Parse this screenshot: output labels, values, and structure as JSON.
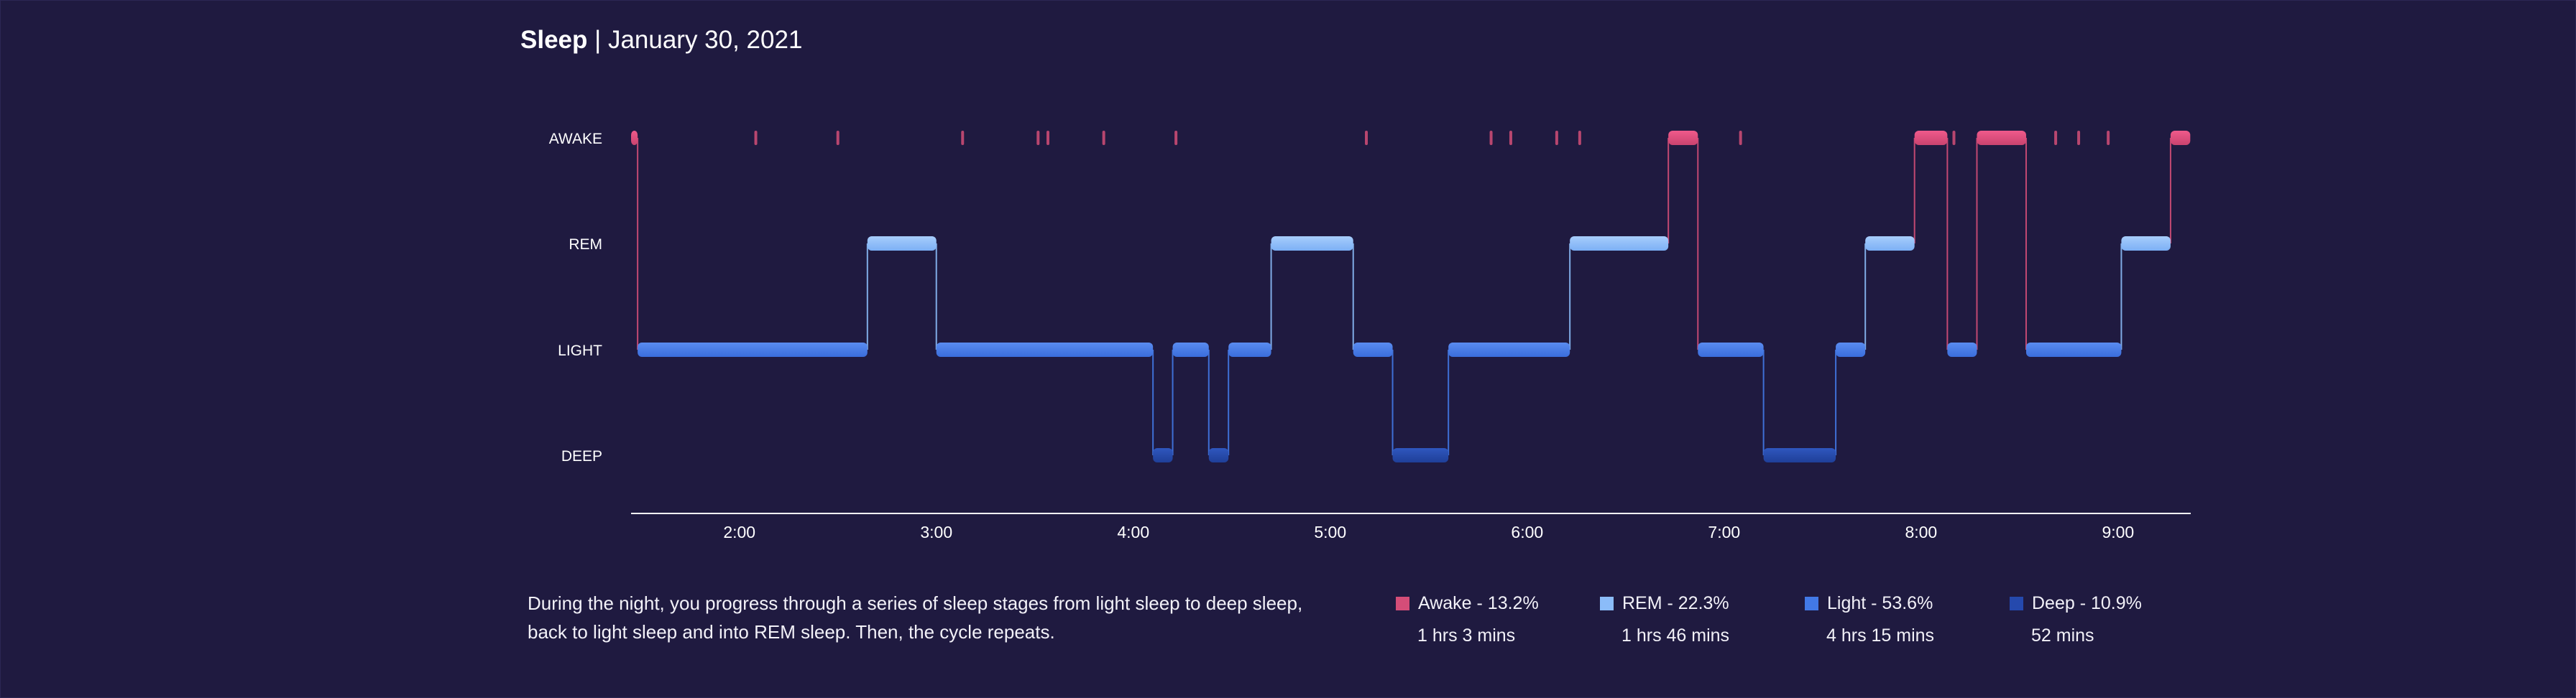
{
  "header": {
    "title": "Sleep",
    "date": "January 30, 2021"
  },
  "description": "During the night, you progress through a series of sleep stages from light sleep to deep sleep, back to light sleep and into REM sleep. Then, the cycle repeats.",
  "legend": [
    {
      "label": "Awake - 13.2%",
      "duration": "1 hrs 3 mins",
      "color": "#d44d78"
    },
    {
      "label": "REM - 22.3%",
      "duration": "1 hrs 46 mins",
      "color": "#8bbcf9"
    },
    {
      "label": "Light - 53.6%",
      "duration": "4 hrs 15 mins",
      "color": "#4279e6"
    },
    {
      "label": "Deep - 10.9%",
      "duration": "52 mins",
      "color": "#2549ad"
    }
  ],
  "chart_data": {
    "type": "line",
    "title": "Sleep | January 30, 2021",
    "x_axis": {
      "type": "time",
      "range": [
        "1:27",
        "9:27"
      ],
      "ticks": [
        "2:00",
        "3:00",
        "4:00",
        "5:00",
        "6:00",
        "7:00",
        "8:00",
        "9:00"
      ]
    },
    "y_categories": [
      "AWAKE",
      "REM",
      "LIGHT",
      "DEEP"
    ],
    "colors": {
      "AWAKE": "#d44d78",
      "REM": "#8bbcf9",
      "LIGHT": "#4279e6",
      "DEEP": "#2549ad"
    },
    "segments": [
      {
        "stage": "AWAKE",
        "start": "1:27",
        "end": "1:29"
      },
      {
        "stage": "LIGHT",
        "start": "1:29",
        "end": "2:39"
      },
      {
        "stage": "REM",
        "start": "2:39",
        "end": "3:00"
      },
      {
        "stage": "LIGHT",
        "start": "3:00",
        "end": "4:06"
      },
      {
        "stage": "DEEP",
        "start": "4:06",
        "end": "4:12"
      },
      {
        "stage": "LIGHT",
        "start": "4:12",
        "end": "4:23"
      },
      {
        "stage": "DEEP",
        "start": "4:23",
        "end": "4:29"
      },
      {
        "stage": "LIGHT",
        "start": "4:29",
        "end": "4:42"
      },
      {
        "stage": "REM",
        "start": "4:42",
        "end": "5:07"
      },
      {
        "stage": "LIGHT",
        "start": "5:07",
        "end": "5:19"
      },
      {
        "stage": "DEEP",
        "start": "5:19",
        "end": "5:36"
      },
      {
        "stage": "LIGHT",
        "start": "5:36",
        "end": "6:13"
      },
      {
        "stage": "REM",
        "start": "6:13",
        "end": "6:43"
      },
      {
        "stage": "AWAKE",
        "start": "6:43",
        "end": "6:52"
      },
      {
        "stage": "LIGHT",
        "start": "6:52",
        "end": "7:12"
      },
      {
        "stage": "DEEP",
        "start": "7:12",
        "end": "7:34"
      },
      {
        "stage": "LIGHT",
        "start": "7:34",
        "end": "7:43"
      },
      {
        "stage": "REM",
        "start": "7:43",
        "end": "7:58"
      },
      {
        "stage": "AWAKE",
        "start": "7:58",
        "end": "8:08"
      },
      {
        "stage": "LIGHT",
        "start": "8:08",
        "end": "8:17"
      },
      {
        "stage": "AWAKE",
        "start": "8:17",
        "end": "8:32"
      },
      {
        "stage": "LIGHT",
        "start": "8:32",
        "end": "9:01"
      },
      {
        "stage": "REM",
        "start": "9:01",
        "end": "9:16"
      },
      {
        "stage": "AWAKE",
        "start": "9:16",
        "end": "9:22"
      }
    ],
    "brief_awakenings": [
      "2:05",
      "2:30",
      "3:08",
      "3:31",
      "3:34",
      "3:51",
      "4:13",
      "5:11",
      "5:49",
      "5:55",
      "6:09",
      "6:16",
      "7:05",
      "8:10",
      "8:41",
      "8:48",
      "8:57"
    ]
  }
}
